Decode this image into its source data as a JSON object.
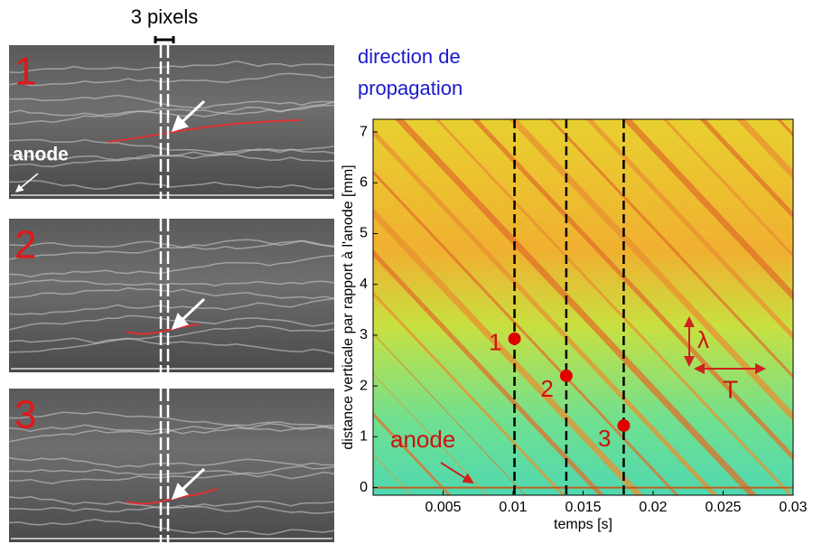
{
  "panels": [
    {
      "label": "1"
    },
    {
      "label": "2"
    },
    {
      "label": "3"
    }
  ],
  "width_label": "3 pixels",
  "panel_anode_label": "anode",
  "direction_lines": [
    "direction de",
    "propagation"
  ],
  "chart_data": {
    "type": "heatmap",
    "xlabel": "temps [s]",
    "ylabel": "distance verticale par rapport à l'anode [mm]",
    "xlim": [
      0,
      0.03
    ],
    "ylim": [
      -0.15,
      7.25
    ],
    "xticks": [
      0.005,
      0.01,
      0.015,
      0.02,
      0.025,
      0.03
    ],
    "yticks": [
      0,
      1,
      2,
      3,
      4,
      5,
      6,
      7
    ],
    "vlines": [
      0.0101,
      0.0138,
      0.0179
    ],
    "points": {
      "x": [
        0.0101,
        0.0138,
        0.0179
      ],
      "y": [
        2.93,
        2.2,
        1.22
      ],
      "labels": [
        "1",
        "2",
        "3"
      ],
      "color": "#e00000"
    },
    "annotations": {
      "anode": "anode",
      "wavelength": "λ",
      "period": "T"
    }
  }
}
